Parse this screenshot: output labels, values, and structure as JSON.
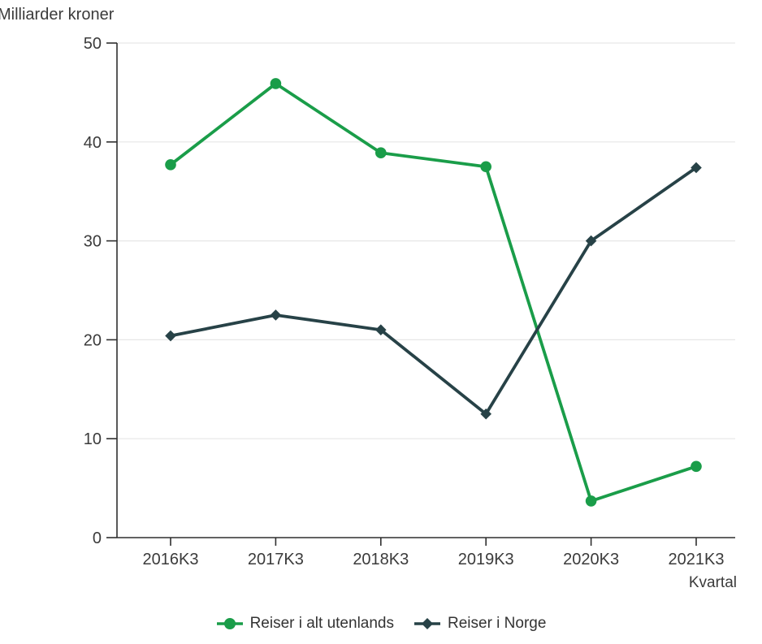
{
  "chart_data": {
    "type": "line",
    "title": "",
    "ylabel": "Milliarder kroner",
    "xlabel": "Kvartal",
    "categories": [
      "2016K3",
      "2017K3",
      "2018K3",
      "2019K3",
      "2020K3",
      "2021K3"
    ],
    "series": [
      {
        "name": "Reiser i alt utenlands",
        "color": "#1a9d49",
        "marker": "circle",
        "values": [
          37.7,
          45.9,
          38.9,
          37.5,
          3.7,
          7.2
        ]
      },
      {
        "name": "Reiser i Norge",
        "color": "#274247",
        "marker": "diamond",
        "values": [
          20.4,
          22.5,
          21.0,
          12.5,
          30.0,
          37.4
        ]
      }
    ],
    "ylim": [
      0,
      50
    ],
    "ytick_step": 10,
    "grid": "horizontal",
    "legend_position": "bottom",
    "colors": {
      "axis": "#2f2f2f",
      "grid": "#e6e6e6",
      "text": "#3b3b3b"
    }
  }
}
